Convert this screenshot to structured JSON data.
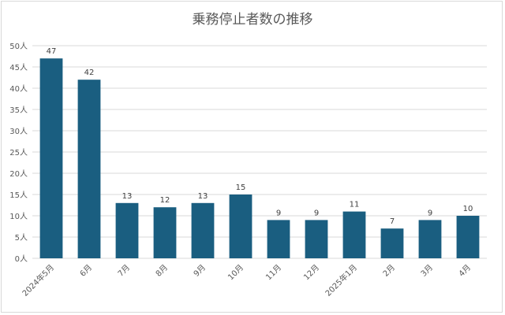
{
  "chart_data": {
    "type": "bar",
    "title": "乗務停止者数の推移",
    "categories": [
      "2024年5月",
      "6月",
      "7月",
      "8月",
      "9月",
      "10月",
      "11月",
      "12月",
      "2025年1月",
      "2月",
      "3月",
      "4月"
    ],
    "values": [
      47,
      42,
      13,
      12,
      13,
      15,
      9,
      9,
      11,
      7,
      9,
      10
    ],
    "value_labels": [
      "47",
      "42",
      "13",
      "12",
      "13",
      "15",
      "9",
      "9",
      "11",
      "7",
      "9",
      "10"
    ],
    "y_ticks": [
      "0人",
      "5人",
      "10人",
      "15人",
      "20人",
      "25人",
      "30人",
      "35人",
      "40人",
      "45人",
      "50人"
    ],
    "ylim": [
      0,
      50
    ],
    "grid": true,
    "legend": "none",
    "bar_color": "#1a5e80",
    "grid_color": "#d9d9d9"
  }
}
